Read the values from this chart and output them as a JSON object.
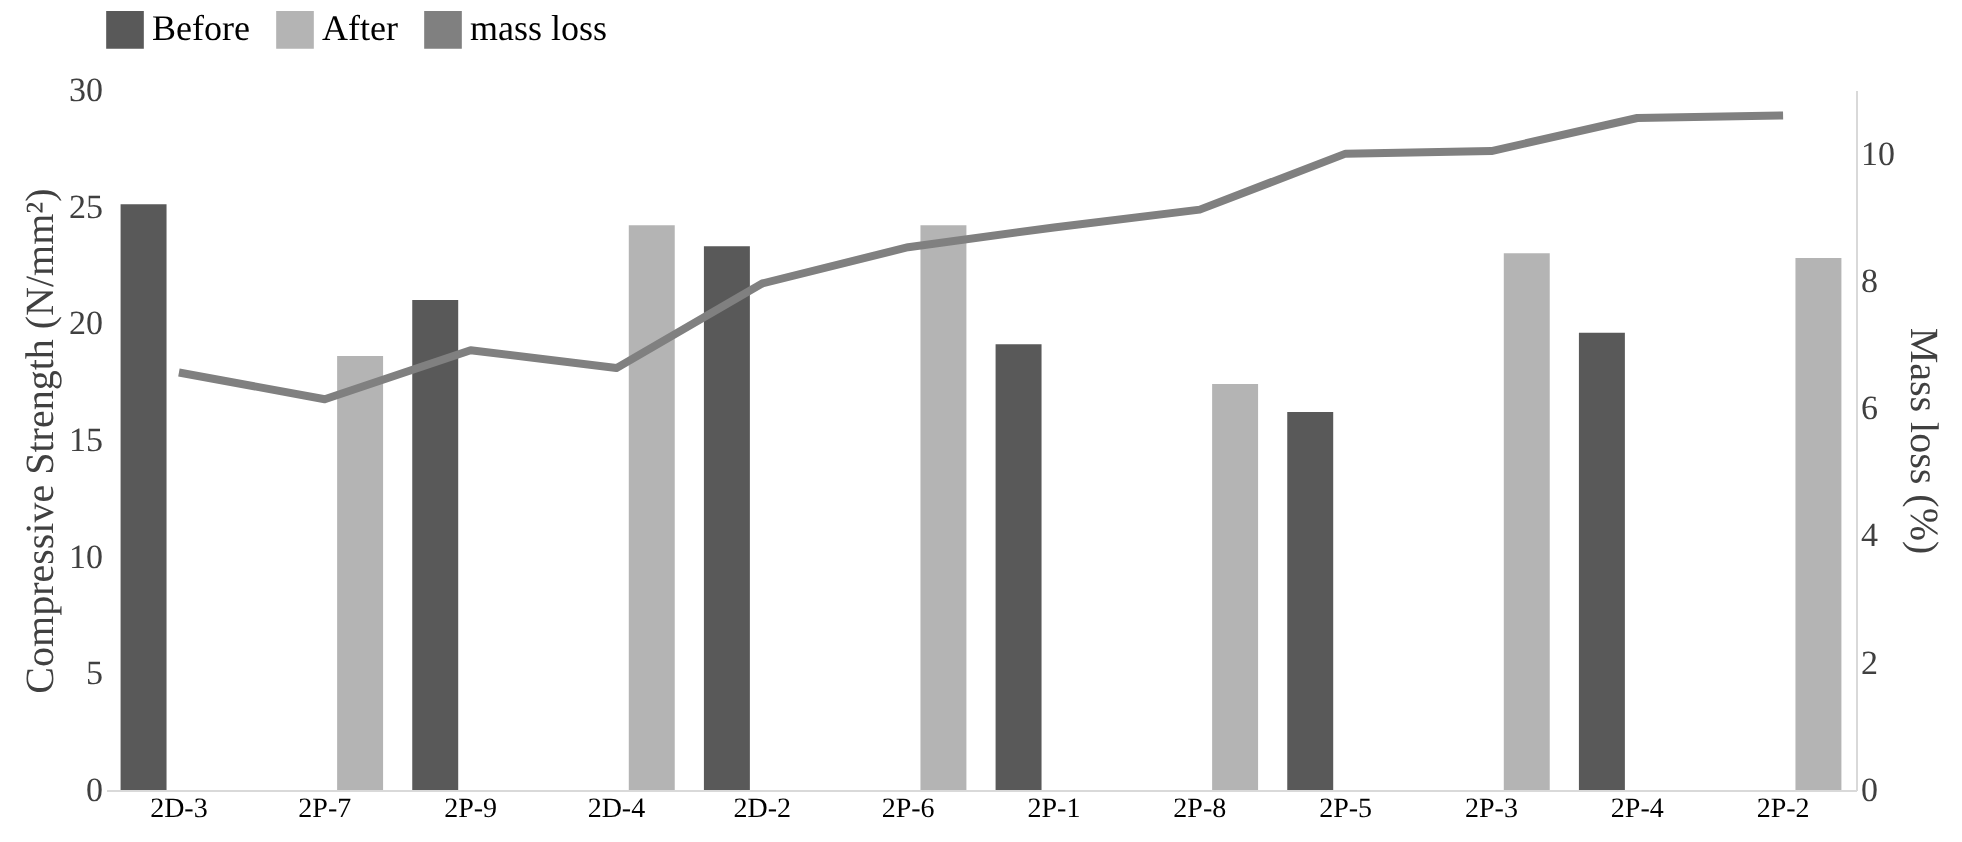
{
  "chart_data": {
    "type": "bar",
    "categories": [
      "2D-3",
      "2P-7",
      "2P-9",
      "2D-4",
      "2D-2",
      "2P-6",
      "2P-1",
      "2P-8",
      "2P-5",
      "2P-3",
      "2P-4",
      "2P-2"
    ],
    "ylabel": "Compressive Strength (N/mm²)",
    "y2label": "Mass loss (%)",
    "ylim": [
      0,
      30
    ],
    "yticks": [
      0,
      5,
      10,
      15,
      20,
      25,
      30
    ],
    "y2lim": [
      0,
      11
    ],
    "y2ticks": [
      0,
      2,
      4,
      6,
      8,
      10
    ],
    "grid": false,
    "legend": "top",
    "series": [
      {
        "name": "Before",
        "color": "#595959",
        "values": [
          25.1,
          null,
          21.0,
          null,
          23.3,
          null,
          19.1,
          null,
          16.2,
          null,
          19.6,
          null
        ]
      },
      {
        "name": "After",
        "color": "#b4b4b4",
        "values": [
          null,
          18.6,
          null,
          24.2,
          null,
          24.2,
          null,
          17.4,
          null,
          23.0,
          null,
          22.8
        ]
      },
      {
        "name": "mass loss",
        "color": "#808080",
        "type": "line",
        "axis": "y2",
        "values": [
          6.56,
          6.14,
          6.91,
          6.63,
          7.96,
          8.53,
          8.84,
          9.12,
          10.0,
          10.04,
          10.56,
          10.6
        ]
      }
    ]
  }
}
